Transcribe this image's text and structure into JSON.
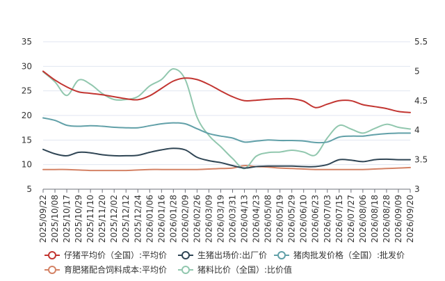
{
  "chart_data": {
    "type": "line",
    "x": [
      "2025/09/22",
      "2025/10/08",
      "2025/10/17",
      "2025/10/29",
      "2025/11/10",
      "2025/11/20",
      "2025/12/02",
      "2025/12/12",
      "2025/12/24",
      "2026/01/06",
      "2026/01/16",
      "2026/01/28",
      "2026/02/09",
      "2026/02/26",
      "2026/03/09",
      "2026/03/19",
      "2026/03/31",
      "2026/04/13",
      "2026/04/23",
      "2026/05/08",
      "2026/05/19",
      "2026/05/29",
      "2026/06/10",
      "2026/06/23",
      "2026/07/03",
      "2026/07/15",
      "2026/07/27",
      "2026/08/06",
      "2026/08/18",
      "2026/08/28",
      "2026/09/09",
      "2026/09/20"
    ],
    "y_left": {
      "min": 5,
      "max": 35,
      "ticks": [
        5,
        10,
        15,
        20,
        25,
        30,
        35
      ]
    },
    "y_right": {
      "min": 3,
      "max": 5.5,
      "ticks": [
        3,
        3.5,
        4,
        4.5,
        5,
        5.5
      ]
    },
    "series": [
      {
        "name": "仔猪平均价（全国）:平均价",
        "axis": "left",
        "color": "#c23531",
        "values": [
          29.0,
          27.2,
          25.8,
          24.8,
          24.5,
          24.2,
          23.8,
          23.4,
          23.2,
          24.0,
          25.5,
          27.0,
          27.6,
          27.3,
          26.3,
          25.0,
          23.8,
          23.0,
          23.1,
          23.3,
          23.4,
          23.4,
          22.9,
          21.6,
          22.3,
          23.0,
          23.0,
          22.2,
          21.8,
          21.4,
          20.8,
          20.6
        ]
      },
      {
        "name": "生猪出场价:出厂价",
        "axis": "left",
        "color": "#2f4554",
        "values": [
          13.1,
          12.2,
          11.8,
          12.5,
          12.4,
          12.0,
          11.8,
          11.8,
          11.9,
          12.5,
          13.0,
          13.3,
          13.0,
          11.5,
          10.8,
          10.4,
          9.8,
          9.3,
          9.6,
          9.7,
          9.7,
          9.7,
          9.6,
          9.6,
          10.0,
          11.0,
          10.9,
          10.6,
          11.0,
          11.1,
          11.0,
          11.0
        ]
      },
      {
        "name": "猪肉批发价格（全国）:批发价",
        "axis": "left",
        "color": "#61a0a8",
        "values": [
          19.5,
          19.0,
          18.0,
          17.8,
          17.9,
          17.8,
          17.6,
          17.5,
          17.5,
          17.9,
          18.3,
          18.5,
          18.3,
          17.3,
          16.3,
          15.8,
          15.4,
          14.6,
          14.8,
          15.0,
          14.9,
          14.9,
          14.8,
          14.5,
          14.6,
          15.6,
          15.8,
          15.8,
          16.1,
          16.3,
          16.4,
          16.4
        ]
      },
      {
        "name": "育肥猪配合饲料成本:平均价",
        "axis": "left",
        "color": "#d48265",
        "values": [
          9.0,
          9.0,
          9.0,
          8.9,
          8.8,
          8.8,
          8.8,
          8.8,
          8.9,
          9.0,
          9.0,
          9.0,
          9.0,
          9.0,
          9.1,
          9.2,
          9.3,
          9.8,
          9.6,
          9.5,
          9.3,
          9.2,
          9.1,
          9.0,
          9.0,
          9.0,
          9.0,
          9.0,
          9.1,
          9.2,
          9.3,
          9.4
        ]
      },
      {
        "name": "猪料比价（全国）:比价值",
        "axis": "right",
        "color": "#91c7ae",
        "values": [
          4.99,
          4.82,
          4.59,
          4.85,
          4.78,
          4.62,
          4.52,
          4.52,
          4.57,
          4.75,
          4.86,
          5.04,
          4.86,
          4.22,
          3.91,
          3.72,
          3.52,
          3.35,
          3.56,
          3.62,
          3.63,
          3.66,
          3.63,
          3.58,
          3.87,
          4.08,
          4.02,
          3.95,
          4.03,
          4.1,
          4.05,
          4.02
        ]
      }
    ]
  }
}
